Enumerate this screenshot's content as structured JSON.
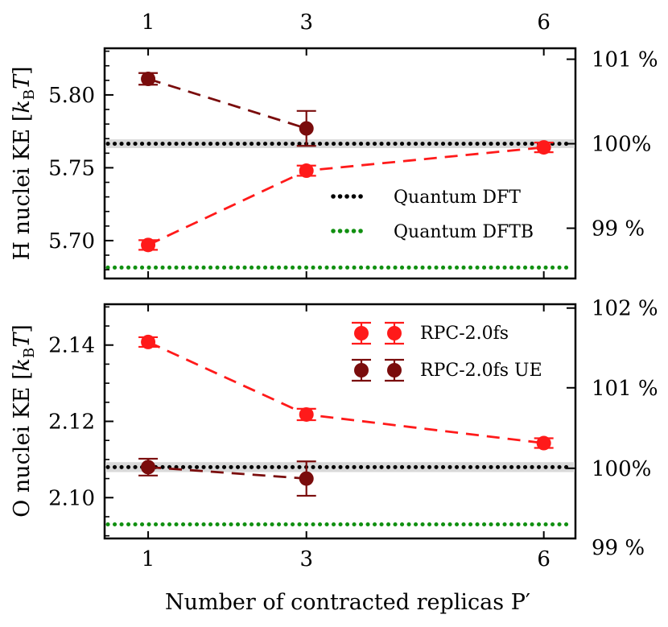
{
  "figure": {
    "xlabel": "Number of contracted replicas P′"
  },
  "chart_data": [
    {
      "type": "line",
      "panel": "top",
      "ylabel": "H nuclei KE [k_B T]",
      "ylabel_main": "H nuclei KE [",
      "ylabel_k": "k",
      "ylabel_sub": "B",
      "ylabel_T": "T",
      "ylabel_close": "]",
      "x_ticks": [
        1,
        3,
        6
      ],
      "x_tick_labels": [
        "1",
        "3",
        "6"
      ],
      "xlim": [
        0.45,
        6.4
      ],
      "ylim": [
        5.674,
        5.832
      ],
      "y_ticks": [
        5.7,
        5.75,
        5.8
      ],
      "y_tick_labels": [
        "5.70",
        "5.75",
        "5.80"
      ],
      "y_ticks_minor": [
        5.68,
        5.69,
        5.71,
        5.72,
        5.73,
        5.74,
        5.76,
        5.77,
        5.78,
        5.79,
        5.81,
        5.82,
        5.83
      ],
      "y2_tick_values": [
        5.7085,
        5.7665,
        5.8245
      ],
      "y2_tick_labels": [
        "99 %",
        "100%",
        "101 %"
      ],
      "reference": {
        "dft": 5.7665,
        "dft_band": [
          5.7635,
          5.7695
        ],
        "dftb": 5.6815
      },
      "series": [
        {
          "name": "RPC-2.0fs",
          "color": "#ff1a1a",
          "x": [
            1,
            3,
            6
          ],
          "y": [
            5.697,
            5.748,
            5.764
          ],
          "err": [
            0.003,
            0.0035,
            0.002
          ]
        },
        {
          "name": "RPC-2.0fs UE",
          "color": "#7a0c0c",
          "x": [
            1,
            3
          ],
          "y": [
            5.811,
            5.777
          ],
          "err": [
            0.004,
            0.012
          ]
        }
      ],
      "legend": [
        {
          "label": "Quantum DFT",
          "color": "#000000"
        },
        {
          "label": "Quantum DFTB",
          "color": "#119011"
        }
      ]
    },
    {
      "type": "line",
      "panel": "bottom",
      "ylabel": "O nuclei KE [k_B T]",
      "ylabel_main": "O nuclei KE [",
      "ylabel_k": "k",
      "ylabel_sub": "B",
      "ylabel_T": "T",
      "ylabel_close": "]",
      "x_ticks": [
        1,
        3,
        6
      ],
      "x_tick_labels": [
        "1",
        "3",
        "6"
      ],
      "xlim": [
        0.45,
        6.4
      ],
      "ylim": [
        2.0893,
        2.1507
      ],
      "y_ticks": [
        2.1,
        2.12,
        2.14
      ],
      "y_tick_labels": [
        "2.10",
        "2.12",
        "2.14"
      ],
      "y_ticks_minor": [
        2.09,
        2.095,
        2.105,
        2.11,
        2.115,
        2.125,
        2.13,
        2.135,
        2.145,
        2.15
      ],
      "y2_tick_values": [
        2.087,
        2.1077,
        2.1288,
        2.1497
      ],
      "y2_tick_labels": [
        "99 %",
        "100%",
        "101 %",
        "102 %"
      ],
      "reference": {
        "dft": 2.108,
        "dft_band": [
          2.1067,
          2.1093
        ],
        "dftb": 2.093
      },
      "series": [
        {
          "name": "RPC-2.0fs",
          "color": "#ff1a1a",
          "x": [
            1,
            3,
            6
          ],
          "y": [
            2.1408,
            2.1218,
            2.1143
          ],
          "err": [
            0.0008,
            0.0015,
            0.001
          ]
        },
        {
          "name": "RPC-2.0fs UE",
          "color": "#7a0c0c",
          "x": [
            1,
            3
          ],
          "y": [
            2.108,
            2.105
          ],
          "err": [
            0.0022,
            0.0045
          ]
        }
      ],
      "legend": [
        {
          "label": "RPC-2.0fs",
          "color": "#ff1a1a"
        },
        {
          "label": "RPC-2.0fs UE",
          "color": "#7a0c0c"
        }
      ]
    }
  ]
}
